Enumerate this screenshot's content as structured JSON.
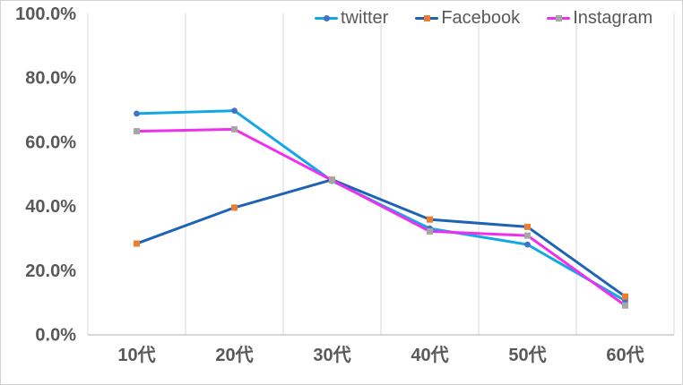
{
  "chart_data": {
    "type": "line",
    "title": "",
    "categories": [
      "10代",
      "20代",
      "30代",
      "40代",
      "50代",
      "60代"
    ],
    "series": [
      {
        "name": "twitter",
        "color": "#14a7e6",
        "marker": "circle",
        "marker_color": "#4472c4",
        "values": [
          68.8,
          69.7,
          47.8,
          33.0,
          28.0,
          10.5
        ]
      },
      {
        "name": "Facebook",
        "color": "#1f63b5",
        "marker": "square",
        "marker_color": "#ed7d31",
        "values": [
          28.3,
          39.5,
          48.2,
          35.8,
          33.5,
          11.8
        ]
      },
      {
        "name": "Instagram",
        "color": "#ee30ee",
        "marker": "square",
        "marker_color": "#a6a6a6",
        "values": [
          63.3,
          63.9,
          48.0,
          32.1,
          30.8,
          9.0
        ]
      }
    ],
    "y_axis": {
      "min": 0,
      "max": 100,
      "tick_interval": 20,
      "tick_values": [
        0,
        20,
        40,
        60,
        80,
        100
      ],
      "tick_labels": [
        "0.0%",
        "20.0%",
        "40.0%",
        "60.0%",
        "80.0%",
        "100.0%"
      ]
    },
    "x_axis": {
      "label": ""
    },
    "grid": {
      "vertical": true,
      "horizontal": false,
      "color": "#d9d9d9"
    },
    "legend_position": "top",
    "text_color": "#595959",
    "axis_line_color": "#bfbfbf"
  }
}
